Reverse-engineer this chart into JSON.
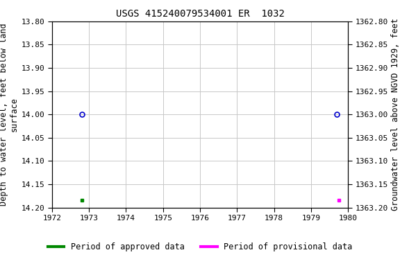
{
  "title": "USGS 415240079534001 ER  1032",
  "ylabel_left": "Depth to water level, feet below land\nsurface",
  "ylabel_right": "Groundwater level above NGVD 1929, feet",
  "xlim": [
    1972,
    1980
  ],
  "ylim_left": [
    13.8,
    14.2
  ],
  "ylim_right": [
    1363.2,
    1362.8
  ],
  "xticks": [
    1972,
    1973,
    1974,
    1975,
    1976,
    1977,
    1978,
    1979,
    1980
  ],
  "yticks_left": [
    13.8,
    13.85,
    13.9,
    13.95,
    14.0,
    14.05,
    14.1,
    14.15,
    14.2
  ],
  "yticks_right": [
    1363.2,
    1363.15,
    1363.1,
    1363.05,
    1363.0,
    1362.95,
    1362.9,
    1362.85,
    1362.8
  ],
  "circle_points_x": [
    1972.8,
    1979.7
  ],
  "circle_points_y": [
    14.0,
    14.0
  ],
  "green_square_x": [
    1972.8
  ],
  "green_square_y": [
    14.185
  ],
  "magenta_square_x": [
    1979.75
  ],
  "magenta_square_y": [
    14.185
  ],
  "circle_color": "#0000cc",
  "green_color": "#008800",
  "magenta_color": "#ff00ff",
  "bg_color": "#ffffff",
  "grid_color": "#c8c8c8",
  "title_fontsize": 10,
  "axis_label_fontsize": 8.5,
  "tick_fontsize": 8,
  "legend_fontsize": 8.5,
  "font_family": "monospace"
}
